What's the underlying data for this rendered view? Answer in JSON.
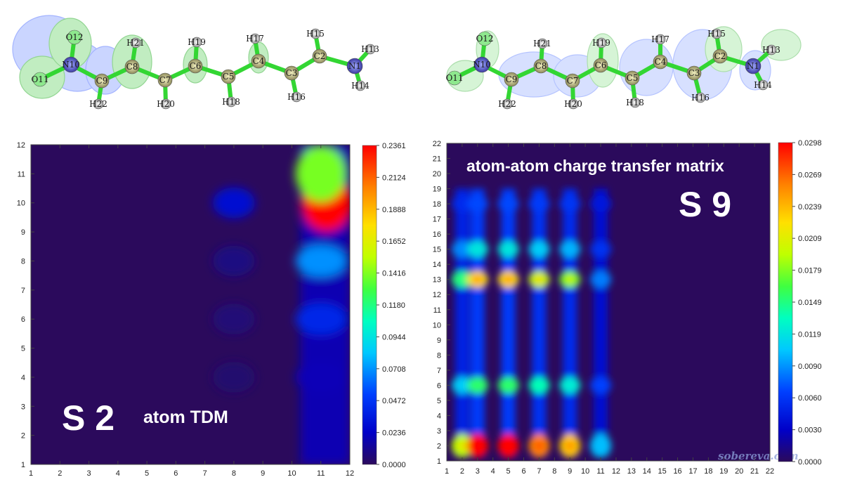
{
  "molecule_left": {
    "atoms": [
      "N1",
      "C2",
      "C3",
      "C4",
      "C5",
      "C6",
      "C7",
      "C8",
      "C9",
      "N10",
      "O11",
      "O12",
      "H13",
      "H14",
      "H15",
      "H16",
      "H17",
      "H18",
      "H19",
      "H20",
      "H21",
      "H22"
    ]
  },
  "molecule_right": {
    "atoms": [
      "N1",
      "C2",
      "C3",
      "C4",
      "C5",
      "C6",
      "C7",
      "C8",
      "C9",
      "N10",
      "O11",
      "O12",
      "H13",
      "H14",
      "H15",
      "H16",
      "H17",
      "H18",
      "H19",
      "H20",
      "H21",
      "H22"
    ]
  },
  "watermark": "sobereva.com",
  "colors": {
    "plot_bg": "#2b0a5c",
    "bond": "#33d633",
    "iso_green": "#66e666",
    "iso_blue": "#6f8cff"
  },
  "chart_data": [
    {
      "type": "heatmap",
      "title": "",
      "big_label": "S 2",
      "annotation": "atom TDM",
      "xlim": [
        1,
        12
      ],
      "ylim": [
        1,
        12
      ],
      "x_ticks": [
        1,
        2,
        3,
        4,
        5,
        6,
        7,
        8,
        9,
        10,
        11,
        12
      ],
      "y_ticks": [
        1,
        2,
        3,
        4,
        5,
        6,
        7,
        8,
        9,
        10,
        11,
        12
      ],
      "colorbar_ticks": [
        "0.2361",
        "0.2124",
        "0.1888",
        "0.1652",
        "0.1416",
        "0.1180",
        "0.0944",
        "0.0708",
        "0.0472",
        "0.0236",
        "0.0000"
      ],
      "colorbar_range": [
        0,
        0.2361
      ],
      "peaks": [
        {
          "x": 11.2,
          "y": 10,
          "value": 0.2361
        },
        {
          "x": 11,
          "y": 11,
          "value": 0.14
        },
        {
          "x": 11,
          "y": 8,
          "value": 0.07
        },
        {
          "x": 11,
          "y": 6,
          "value": 0.04
        },
        {
          "x": 11,
          "y": 4,
          "value": 0.02
        },
        {
          "x": 8,
          "y": 10,
          "value": 0.028
        },
        {
          "x": 8,
          "y": 8,
          "value": 0.008
        },
        {
          "x": 8,
          "y": 6,
          "value": 0.006
        },
        {
          "x": 8,
          "y": 4,
          "value": 0.004
        }
      ]
    },
    {
      "type": "heatmap",
      "title": "atom-atom charge transfer matrix",
      "big_label": "S 9",
      "annotation": "",
      "xlim": [
        1,
        22
      ],
      "ylim": [
        1,
        22
      ],
      "x_ticks": [
        1,
        2,
        3,
        4,
        5,
        6,
        7,
        8,
        9,
        10,
        11,
        12,
        13,
        14,
        15,
        16,
        17,
        18,
        19,
        20,
        21,
        22
      ],
      "y_ticks": [
        1,
        2,
        3,
        4,
        5,
        6,
        7,
        8,
        9,
        10,
        11,
        12,
        13,
        14,
        15,
        16,
        17,
        18,
        19,
        20,
        21,
        22
      ],
      "colorbar_ticks": [
        "0.0298",
        "0.0269",
        "0.0239",
        "0.0209",
        "0.0179",
        "0.0149",
        "0.0119",
        "0.0090",
        "0.0060",
        "0.0030",
        "0.0000"
      ],
      "colorbar_range": [
        0,
        0.0298
      ],
      "row_centers": [
        2,
        6,
        13,
        15,
        18
      ],
      "row_weights": [
        1.0,
        0.45,
        0.72,
        0.32,
        0.12
      ],
      "col_centers": [
        2,
        3,
        5,
        7,
        9,
        11
      ],
      "col_weights": [
        0.6,
        1.0,
        1.0,
        0.85,
        0.75,
        0.25
      ]
    }
  ]
}
